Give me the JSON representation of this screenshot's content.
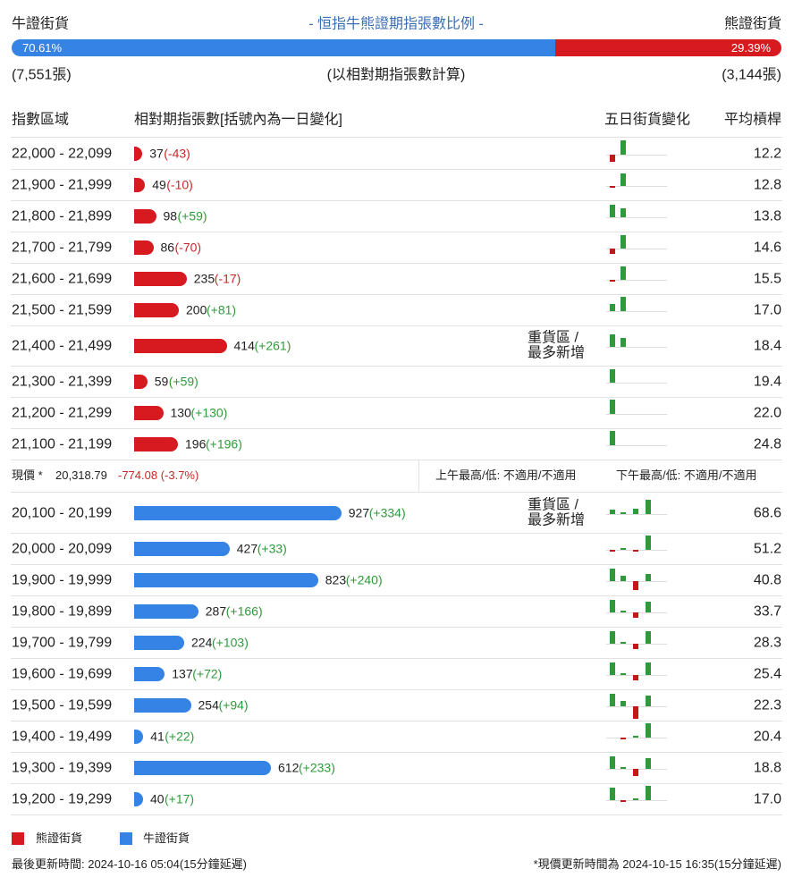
{
  "header": {
    "bull_label": "牛證街貨",
    "title": "- 恒指牛熊證期指張數比例 -",
    "bear_label": "熊證街貨",
    "bull_pct": {
      "value": 70.61,
      "label": "70.61%"
    },
    "bear_pct": {
      "value": 29.39,
      "label": "29.39%"
    },
    "bull_count": "(7,551張)",
    "basis": "(以相對期指張數計算)",
    "bear_count": "(3,144張)"
  },
  "columns": [
    "指數區域",
    "相對期指張數[括號內為一日變化]",
    "五日街貨變化",
    "平均槓桿"
  ],
  "bear_rows": [
    {
      "range": "22,000 - 22,099",
      "count": 37,
      "change": "(-43)",
      "five_day": [
        -8,
        16,
        null,
        null
      ],
      "leverage": "12.2"
    },
    {
      "range": "21,900 - 21,999",
      "count": 49,
      "change": "(-10)",
      "five_day": [
        -2,
        14,
        null,
        null
      ],
      "leverage": "12.8"
    },
    {
      "range": "21,800 - 21,899",
      "count": 98,
      "change": "(+59)",
      "five_day": [
        14,
        10,
        null,
        null
      ],
      "leverage": "13.8"
    },
    {
      "range": "21,700 - 21,799",
      "count": 86,
      "change": "(-70)",
      "five_day": [
        -6,
        15,
        null,
        null
      ],
      "leverage": "14.6"
    },
    {
      "range": "21,600 - 21,699",
      "count": 235,
      "change": "(-17)",
      "five_day": [
        -1,
        15,
        null,
        null
      ],
      "leverage": "15.5"
    },
    {
      "range": "21,500 - 21,599",
      "count": 200,
      "change": "(+81)",
      "five_day": [
        8,
        16,
        null,
        null
      ],
      "leverage": "17.0"
    },
    {
      "range": "21,400 - 21,499",
      "count": 414,
      "change": "(+261)",
      "five_day": [
        14,
        10,
        null,
        null
      ],
      "leverage": "18.4",
      "note": [
        "重貨區 /",
        "最多新增"
      ]
    },
    {
      "range": "21,300 - 21,399",
      "count": 59,
      "change": "(+59)",
      "five_day": [
        15,
        null,
        null,
        null
      ],
      "leverage": "19.4"
    },
    {
      "range": "21,200 - 21,299",
      "count": 130,
      "change": "(+130)",
      "five_day": [
        16,
        null,
        null,
        null
      ],
      "leverage": "22.0"
    },
    {
      "range": "21,100 - 21,199",
      "count": 196,
      "change": "(+196)",
      "five_day": [
        16,
        null,
        null,
        null
      ],
      "leverage": "24.8"
    }
  ],
  "current": {
    "label": "現價 *",
    "price": "20,318.79",
    "change": "-774.08 (-3.7%)",
    "am": "上午最高/低: 不適用/不適用",
    "pm": "下午最高/低: 不適用/不適用"
  },
  "bull_rows": [
    {
      "range": "20,100 - 20,199",
      "count": 927,
      "change": "(+334)",
      "five_day": [
        5,
        1,
        6,
        16
      ],
      "leverage": "68.6",
      "note": [
        "重貨區 /",
        "最多新增"
      ]
    },
    {
      "range": "20,000 - 20,099",
      "count": 427,
      "change": "(+33)",
      "five_day": [
        -1,
        1,
        -1,
        16
      ],
      "leverage": "51.2"
    },
    {
      "range": "19,900 - 19,999",
      "count": 823,
      "change": "(+240)",
      "five_day": [
        14,
        6,
        -10,
        8
      ],
      "leverage": "40.8"
    },
    {
      "range": "19,800 - 19,899",
      "count": 287,
      "change": "(+166)",
      "five_day": [
        14,
        1,
        -6,
        12
      ],
      "leverage": "33.7"
    },
    {
      "range": "19,700 - 19,799",
      "count": 224,
      "change": "(+103)",
      "five_day": [
        14,
        1,
        -6,
        14
      ],
      "leverage": "28.3"
    },
    {
      "range": "19,600 - 19,699",
      "count": 137,
      "change": "(+72)",
      "five_day": [
        14,
        1,
        -6,
        14
      ],
      "leverage": "25.4"
    },
    {
      "range": "19,500 - 19,599",
      "count": 254,
      "change": "(+94)",
      "five_day": [
        14,
        6,
        -14,
        12
      ],
      "leverage": "22.3"
    },
    {
      "range": "19,400 - 19,499",
      "count": 41,
      "change": "(+22)",
      "five_day": [
        null,
        -1,
        1,
        16
      ],
      "leverage": "20.4"
    },
    {
      "range": "19,300 - 19,399",
      "count": 612,
      "change": "(+233)",
      "five_day": [
        14,
        1,
        -8,
        12
      ],
      "leverage": "18.8"
    },
    {
      "range": "19,200 - 19,299",
      "count": 40,
      "change": "(+17)",
      "five_day": [
        14,
        -1,
        1,
        16
      ],
      "leverage": "17.0"
    }
  ],
  "legend": [
    {
      "name": "熊證街貨",
      "color": "#d71920"
    },
    {
      "name": "牛證街貨",
      "color": "#3683e6"
    }
  ],
  "footer": {
    "updated": "最後更新時間: 2024-10-16 05:04(15分鐘延遲)",
    "price_note": "*現價更新時間為 2024-10-15 16:35(15分鐘延遲)"
  }
}
